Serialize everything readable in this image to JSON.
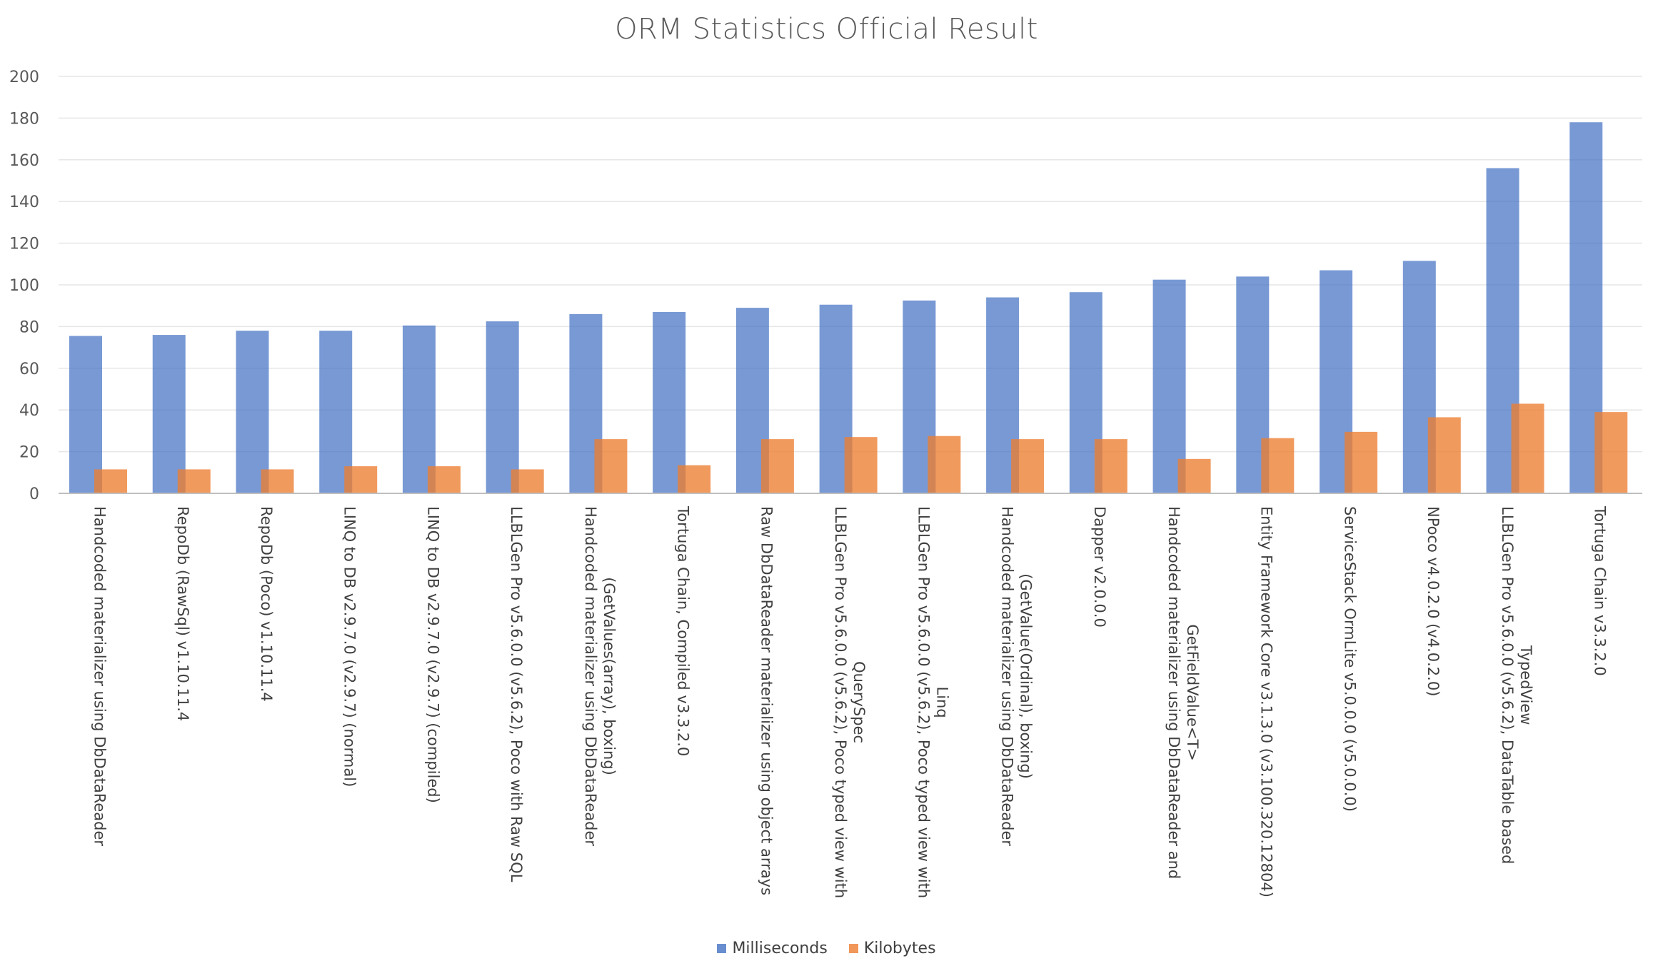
{
  "chart_data": {
    "type": "bar",
    "title": "ORM Statistics Official Result",
    "xlabel": "",
    "ylabel": "",
    "ylim": [
      0,
      200
    ],
    "yticks": [
      0,
      20,
      40,
      60,
      80,
      100,
      120,
      140,
      160,
      180,
      200
    ],
    "grid": true,
    "legend_position": "bottom",
    "categories": [
      "Handcoded materializer using DbDataReader",
      "RepoDb (RawSql) v1.10.11.4",
      "RepoDb (Poco) v1.10.11.4",
      "LINQ to DB v2.9.7.0 (v2.9.7) (normal)",
      "LINQ to DB v2.9.7.0 (v2.9.7) (compiled)",
      "LLBLGen Pro v5.6.0.0 (v5.6.2), Poco with Raw SQL",
      "Handcoded materializer using DbDataReader (GetValues(array), boxing)",
      "Tortuga Chain, Compiled v3.3.2.0",
      "Raw DbDataReader materializer using object arrays",
      "LLBLGen Pro v5.6.0.0 (v5.6.2), Poco typed view with QuerySpec",
      "LLBLGen Pro v5.6.0.0 (v5.6.2), Poco typed view with Linq",
      "Handcoded materializer using DbDataReader (GetValue(Ordinal), boxing)",
      "Dapper v2.0.0.0",
      "Handcoded materializer using DbDataReader and GetFieldValue<T>",
      "Entity Framework Core v3.1.3.0 (v3.100.320.12804)",
      "ServiceStack OrmLite v5.0.0.0 (v5.0.0.0)",
      "NPoco v4.0.2.0 (v4.0.2.0)",
      "LLBLGen Pro v5.6.0.0 (v5.6.2), DataTable based TypedView",
      "Tortuga Chain v3.3.2.0"
    ],
    "category_lines": [
      [
        "Handcoded materializer using DbDataReader"
      ],
      [
        "RepoDb (RawSql) v1.10.11.4"
      ],
      [
        "RepoDb (Poco) v1.10.11.4"
      ],
      [
        "LINQ to DB v2.9.7.0 (v2.9.7) (normal)"
      ],
      [
        "LINQ to DB v2.9.7.0 (v2.9.7) (compiled)"
      ],
      [
        "LLBLGen Pro v5.6.0.0 (v5.6.2), Poco with Raw SQL"
      ],
      [
        "Handcoded materializer using DbDataReader",
        "(GetValues(array), boxing)"
      ],
      [
        "Tortuga Chain, Compiled v3.3.2.0"
      ],
      [
        "Raw DbDataReader materializer using object arrays"
      ],
      [
        "LLBLGen Pro v5.6.0.0 (v5.6.2), Poco typed view with",
        "QuerySpec"
      ],
      [
        "LLBLGen Pro v5.6.0.0 (v5.6.2), Poco typed view with",
        "Linq"
      ],
      [
        "Handcoded materializer using DbDataReader",
        "(GetValue(Ordinal), boxing)"
      ],
      [
        "Dapper v2.0.0.0"
      ],
      [
        "Handcoded materializer using DbDataReader and",
        "GetFieldValue<T>"
      ],
      [
        "Entity Framework Core v3.1.3.0 (v3.100.320.12804)"
      ],
      [
        "ServiceStack OrmLite v5.0.0.0 (v5.0.0.0)"
      ],
      [
        "NPoco v4.0.2.0 (v4.0.2.0)"
      ],
      [
        "LLBLGen Pro v5.6.0.0 (v5.6.2), DataTable based",
        "TypedView"
      ],
      [
        "Tortuga Chain v3.3.2.0"
      ]
    ],
    "series": [
      {
        "name": "Milliseconds",
        "color": "#4472C4",
        "values": [
          75.5,
          76,
          78,
          78,
          80.5,
          82.5,
          86,
          87,
          89,
          90.5,
          92.5,
          94,
          96.5,
          102.5,
          104,
          107,
          111.5,
          156,
          178
        ]
      },
      {
        "name": "Kilobytes",
        "color": "#ED7D31",
        "values": [
          11.5,
          11.5,
          11.5,
          13,
          13,
          11.5,
          26,
          13.5,
          26,
          27,
          27.5,
          26,
          26,
          16.5,
          26.5,
          29.5,
          36.5,
          43,
          39
        ]
      }
    ]
  }
}
